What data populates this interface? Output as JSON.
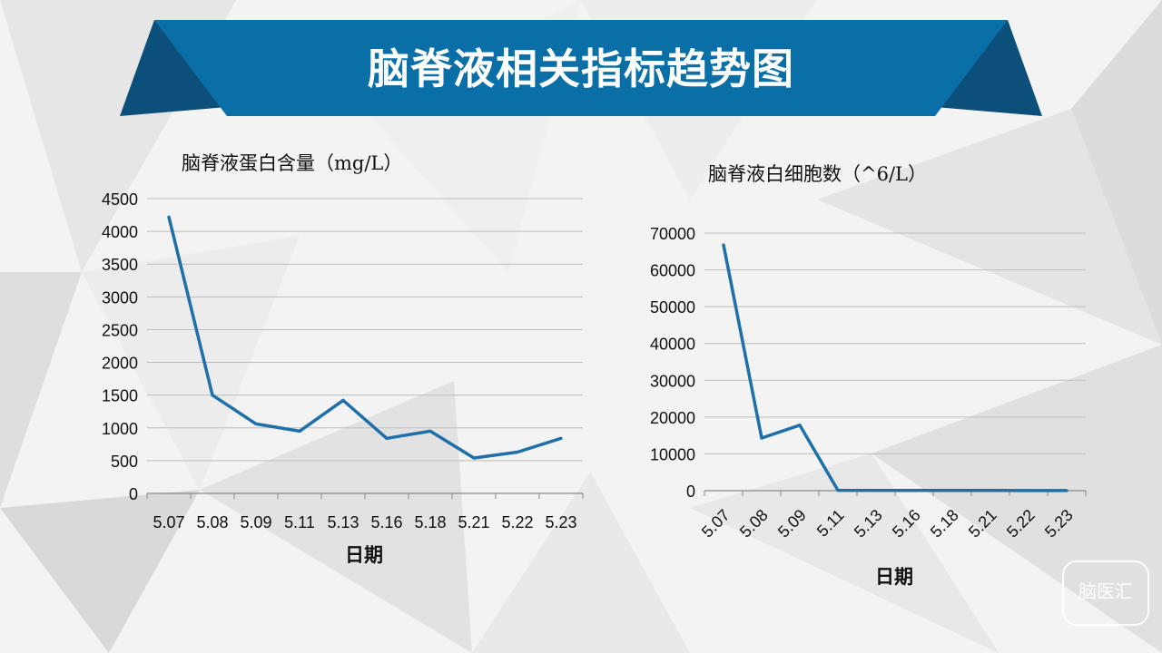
{
  "page": {
    "title": "脑脊液相关指标趋势图",
    "watermark": "脑医汇"
  },
  "colors": {
    "banner_main": "#0a6fa6",
    "banner_dark": "#0b4f7a",
    "series": "#1f6fa8",
    "grid": "#bdbdbd"
  },
  "chart_data": [
    {
      "type": "line",
      "title": "脑脊液蛋白含量（mg/L）",
      "xlabel": "日期",
      "ylabel": "",
      "categories": [
        "5.07",
        "5.08",
        "5.09",
        "5.11",
        "5.13",
        "5.16",
        "5.18",
        "5.21",
        "5.22",
        "5.23"
      ],
      "series": [
        {
          "values": [
            4220,
            1500,
            1060,
            950,
            1420,
            840,
            950,
            540,
            630,
            840
          ]
        }
      ],
      "ylim": [
        0,
        4500
      ],
      "yticks": [
        0,
        500,
        1000,
        1500,
        2000,
        2500,
        3000,
        3500,
        4000,
        4500
      ],
      "grid": true,
      "legend": "none"
    },
    {
      "type": "line",
      "title": "脑脊液白细胞数（^6/L）",
      "xlabel": "日期",
      "ylabel": "",
      "categories": [
        "5.07",
        "5.08",
        "5.09",
        "5.11",
        "5.13",
        "5.16",
        "5.18",
        "5.21",
        "5.22",
        "5.23"
      ],
      "series": [
        {
          "values": [
            66800,
            14300,
            17800,
            100,
            80,
            60,
            50,
            40,
            30,
            20
          ]
        }
      ],
      "ylim": [
        0,
        70000
      ],
      "yticks": [
        0,
        10000,
        20000,
        30000,
        40000,
        50000,
        60000,
        70000
      ],
      "grid": true,
      "legend": "none"
    }
  ]
}
